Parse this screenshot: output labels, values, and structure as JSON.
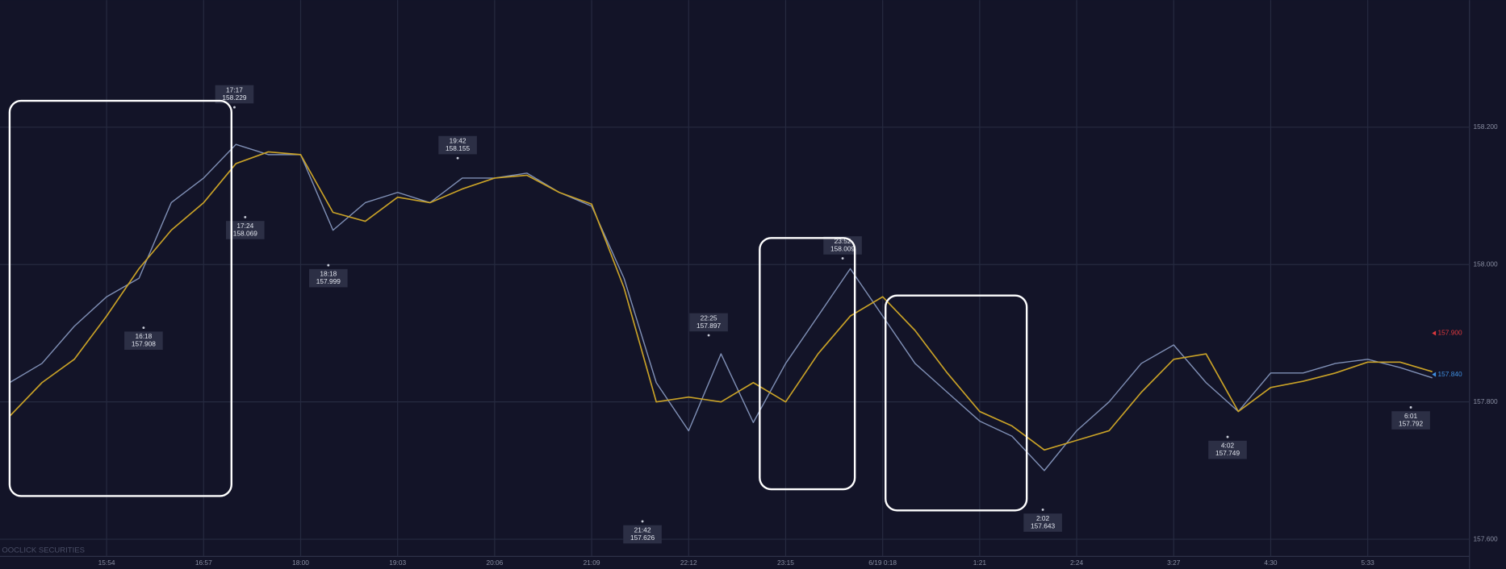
{
  "chart_data": {
    "type": "line",
    "categories": [
      null,
      null,
      null,
      "15:54",
      null,
      null,
      "16:57",
      null,
      null,
      "18:00",
      null,
      null,
      "19:03",
      null,
      null,
      "20:06",
      null,
      null,
      "21:09",
      null,
      null,
      "22:12",
      null,
      null,
      "23:15",
      null,
      null,
      "6/19 0:18",
      null,
      null,
      "1:21",
      null,
      null,
      "2:24",
      null,
      null,
      "3:27",
      null,
      null,
      "4:30",
      null,
      null,
      "5:33",
      null,
      null
    ],
    "series": [
      {
        "color": "#7f8fb5",
        "values": [
          157.828,
          157.856,
          157.91,
          157.953,
          157.98,
          158.09,
          158.126,
          158.175,
          158.16,
          158.16,
          158.05,
          158.09,
          158.105,
          158.09,
          158.126,
          158.126,
          158.133,
          158.105,
          158.085,
          157.98,
          157.828,
          157.758,
          157.87,
          157.77,
          157.856,
          157.925,
          157.994,
          157.925,
          157.856,
          157.814,
          157.772,
          157.75,
          157.7,
          157.758,
          157.8,
          157.856,
          157.883,
          157.828,
          157.786,
          157.842,
          157.842,
          157.856,
          157.862,
          157.85,
          157.835
        ]
      },
      {
        "color": "#c9a227",
        "values": [
          157.779,
          157.828,
          157.862,
          157.925,
          157.994,
          158.05,
          158.09,
          158.147,
          158.164,
          158.16,
          158.076,
          158.063,
          158.098,
          158.09,
          158.11,
          158.126,
          158.13,
          158.105,
          158.088,
          157.966,
          157.8,
          157.807,
          157.8,
          157.828,
          157.8,
          157.87,
          157.925,
          157.953,
          157.904,
          157.842,
          157.786,
          157.765,
          157.73,
          157.744,
          157.758,
          157.814,
          157.862,
          157.87,
          157.786,
          157.821,
          157.83,
          157.842,
          157.858,
          157.858,
          157.844
        ]
      }
    ],
    "ylim": [
      157.575,
      158.385
    ],
    "yticks": [
      {
        "value": 157.6,
        "label": "157.600"
      },
      {
        "value": 157.8,
        "label": "157.800"
      },
      {
        "value": 158.0,
        "label": "158.000"
      },
      {
        "value": 158.2,
        "label": "158.200"
      }
    ],
    "grid": true,
    "annotations": [
      {
        "time": "16:18",
        "price": 157.908,
        "price_label": "157.908"
      },
      {
        "time": "17:17",
        "price": 158.229,
        "price_label": "158.229"
      },
      {
        "time": "17:24",
        "price": 158.069,
        "price_label": "158.069"
      },
      {
        "time": "18:18",
        "price": 157.999,
        "price_label": "157.999"
      },
      {
        "time": "19:42",
        "price": 158.155,
        "price_label": "158.155"
      },
      {
        "time": "21:42",
        "price": 157.626,
        "price_label": "157.626"
      },
      {
        "time": "22:25",
        "price": 157.897,
        "price_label": "157.897"
      },
      {
        "time": "23:52",
        "price": 158.009,
        "price_label": "158.009"
      },
      {
        "time": "2:02",
        "price": 157.643,
        "price_label": "157.643"
      },
      {
        "time": "4:02",
        "price": 157.749,
        "price_label": "157.749"
      },
      {
        "time": "6:01",
        "price": 157.792,
        "price_label": "157.792"
      }
    ],
    "price_tags": [
      {
        "value": 157.9,
        "label": "157.900",
        "color": "#e0393e"
      },
      {
        "value": 157.84,
        "label": "157.840",
        "color": "#3f8fe0"
      }
    ],
    "watermark": "OOCLICK SECURITIES"
  }
}
